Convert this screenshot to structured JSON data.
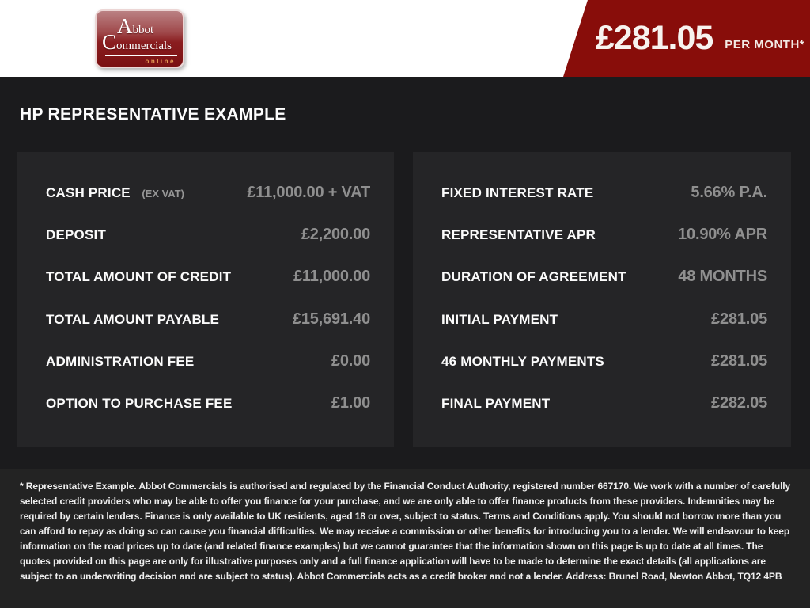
{
  "brand": {
    "name_line1": "Abbot",
    "name_line2": "Commercials",
    "name_line3": "online"
  },
  "banner": {
    "amount": "£281.05",
    "period": "PER MONTH*"
  },
  "title": "HP REPRESENTATIVE EXAMPLE",
  "panels": {
    "left": {
      "rows": [
        {
          "label": "CASH PRICE",
          "sublabel": "(EX VAT)",
          "value": "£11,000.00 + VAT"
        },
        {
          "label": "DEPOSIT",
          "value": "£2,200.00"
        },
        {
          "label": "TOTAL AMOUNT OF CREDIT",
          "value": "£11,000.00"
        },
        {
          "label": "TOTAL AMOUNT PAYABLE",
          "value": "£15,691.40"
        },
        {
          "label": "ADMINISTRATION FEE",
          "value": "£0.00"
        },
        {
          "label": "OPTION TO PURCHASE FEE",
          "value": "£1.00"
        }
      ]
    },
    "right": {
      "rows": [
        {
          "label": "FIXED INTEREST RATE",
          "value": "5.66% P.A."
        },
        {
          "label": "REPRESENTATIVE APR",
          "value": "10.90% APR"
        },
        {
          "label": "DURATION OF AGREEMENT",
          "value": "48 MONTHS"
        },
        {
          "label": "INITIAL PAYMENT",
          "value": "£281.05"
        },
        {
          "label": "46 MONTHLY PAYMENTS",
          "value": "£281.05"
        },
        {
          "label": "FINAL PAYMENT",
          "value": "£282.05"
        }
      ]
    }
  },
  "footer": {
    "disclaimer": "* Representative Example. Abbot Commercials is authorised and regulated by the Financial Conduct Authority, registered number 667170. We work with a number of carefully selected credit providers who may be able to offer you finance for your purchase, and we are only able to offer finance products from these providers. Indemnities may be required by certain lenders. Finance is only available to UK residents, aged 18 or over, subject to status. Terms and Conditions apply. You should not borrow more than you can afford to repay as doing so can cause you financial difficulties. We may receive a commission or other benefits for introducing you to a lender. We will endeavour to keep information on the road prices up to date (and related finance examples) but we cannot guarantee that the information shown on this page is up to date at all times. The quotes provided on this page are only for illustrative purposes only and a full finance application will have to be made to determine the exact details (all applications are subject to an underwriting decision and are subject to status). Abbot Commercials acts as a credit broker and not a lender. Address: Brunel Road, Newton Abbot, TQ12 4PB"
  },
  "colors": {
    "banner_red": "#880d0a",
    "header_bg": "#ffffff",
    "page_bg": "#1b1b1d",
    "panel_bg": "#252527",
    "footer_bg": "#232323",
    "value_gray": "#8f8f8f",
    "logo_online_orange": "#e59a55"
  }
}
